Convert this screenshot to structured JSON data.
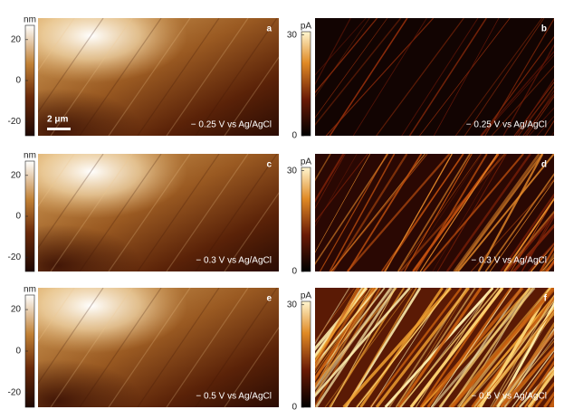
{
  "panels": [
    {
      "letter": "a",
      "kind": "topography",
      "caption": "− 0.25 V vs Ag/AgCl",
      "colorbar": {
        "unit": "nm",
        "lim": [
          -27,
          27
        ],
        "ticks": [
          20,
          0,
          -20
        ]
      },
      "scale_bar": "2 μm"
    },
    {
      "letter": "b",
      "kind": "current",
      "caption": "− 0.25 V vs Ag/AgCl",
      "colorbar": {
        "unit": "pA",
        "lim": [
          0,
          31
        ],
        "ticks": [
          30,
          0
        ]
      }
    },
    {
      "letter": "c",
      "kind": "topography",
      "caption": "− 0.3 V vs Ag/AgCl",
      "colorbar": {
        "unit": "nm",
        "lim": [
          -27,
          27
        ],
        "ticks": [
          20,
          0,
          -20
        ]
      }
    },
    {
      "letter": "d",
      "kind": "current",
      "caption": "− 0.3 V vs Ag/AgCl",
      "colorbar": {
        "unit": "pA",
        "lim": [
          0,
          31
        ],
        "ticks": [
          30,
          0
        ]
      }
    },
    {
      "letter": "e",
      "kind": "topography",
      "caption": "− 0.5 V vs Ag/AgCl",
      "colorbar": {
        "unit": "nm",
        "lim": [
          -27,
          27
        ],
        "ticks": [
          20,
          0,
          -20
        ]
      }
    },
    {
      "letter": "f",
      "kind": "current",
      "caption": "− 0.5 V vs Ag/AgCl",
      "colorbar": {
        "unit": "pA",
        "lim": [
          0,
          31
        ],
        "ticks": [
          30,
          0
        ]
      }
    }
  ]
}
